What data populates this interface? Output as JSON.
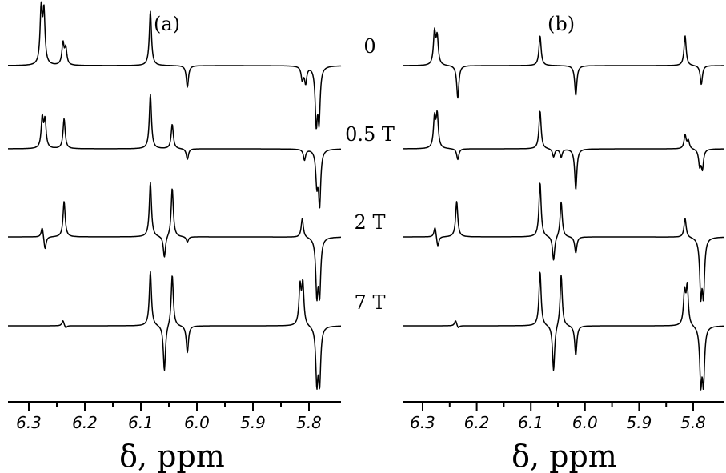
{
  "chart_data": [
    {
      "type": "line",
      "panel_label": "(a)",
      "xlabel": "δ, ppm",
      "x_ticks": [
        "6.3",
        "6.2",
        "6.1",
        "6.0",
        "5.9",
        "5.8"
      ],
      "x_tick_values": [
        6.3,
        6.2,
        6.1,
        6.0,
        5.9,
        5.8
      ],
      "xlim": [
        6.33,
        5.73
      ],
      "x_reversed": true,
      "traces": [
        {
          "field": "0",
          "peaks": [
            {
              "ppm": 6.278,
              "amp": 1.0
            },
            {
              "ppm": 6.273,
              "amp": 0.95
            },
            {
              "ppm": 6.239,
              "amp": 0.4
            },
            {
              "ppm": 6.234,
              "amp": 0.3
            },
            {
              "ppm": 6.083,
              "amp": 1.0
            },
            {
              "ppm": 6.017,
              "amp": -0.4
            },
            {
              "ppm": 5.812,
              "amp": -0.25
            },
            {
              "ppm": 5.806,
              "amp": -0.3
            },
            {
              "ppm": 5.787,
              "amp": -1.0
            },
            {
              "ppm": 5.782,
              "amp": -0.95
            }
          ]
        },
        {
          "field": "0.5 T",
          "peaks": [
            {
              "ppm": 6.276,
              "amp": 0.55
            },
            {
              "ppm": 6.271,
              "amp": 0.5
            },
            {
              "ppm": 6.237,
              "amp": 0.55
            },
            {
              "ppm": 6.083,
              "amp": 1.0
            },
            {
              "ppm": 6.044,
              "amp": 0.45
            },
            {
              "ppm": 6.017,
              "amp": -0.2
            },
            {
              "ppm": 5.808,
              "amp": -0.2
            },
            {
              "ppm": 5.786,
              "amp": -0.6
            },
            {
              "ppm": 5.781,
              "amp": -1.0
            }
          ]
        },
        {
          "field": "2 T",
          "peaks": [
            {
              "ppm": 6.276,
              "amp": 0.2
            },
            {
              "ppm": 6.271,
              "amp": -0.25
            },
            {
              "ppm": 6.237,
              "amp": 0.65
            },
            {
              "ppm": 6.083,
              "amp": 1.0
            },
            {
              "ppm": 6.058,
              "amp": -0.4
            },
            {
              "ppm": 6.044,
              "amp": 0.9
            },
            {
              "ppm": 6.017,
              "amp": -0.1
            },
            {
              "ppm": 5.812,
              "amp": 0.35
            },
            {
              "ppm": 5.786,
              "amp": -1.0
            },
            {
              "ppm": 5.781,
              "amp": -1.0
            }
          ]
        },
        {
          "field": "7 T",
          "peaks": [
            {
              "ppm": 6.239,
              "amp": 0.1
            },
            {
              "ppm": 6.234,
              "amp": -0.05
            },
            {
              "ppm": 6.083,
              "amp": 1.0
            },
            {
              "ppm": 6.058,
              "amp": -0.85
            },
            {
              "ppm": 6.044,
              "amp": 0.95
            },
            {
              "ppm": 6.017,
              "amp": -0.5
            },
            {
              "ppm": 5.816,
              "amp": 0.7
            },
            {
              "ppm": 5.811,
              "amp": 0.75
            },
            {
              "ppm": 5.786,
              "amp": -1.0
            },
            {
              "ppm": 5.781,
              "amp": -1.0
            }
          ]
        }
      ]
    },
    {
      "type": "line",
      "panel_label": "(b)",
      "xlabel": "δ, ppm",
      "x_ticks": [
        "6.3",
        "6.2",
        "6.1",
        "6.0",
        "5.9",
        "5.8"
      ],
      "x_tick_values": [
        6.3,
        6.2,
        6.1,
        6.0,
        5.9,
        5.8
      ],
      "xlim": [
        6.33,
        5.73
      ],
      "x_reversed": true,
      "traces": [
        {
          "field": "0",
          "peaks": [
            {
              "ppm": 6.278,
              "amp": 0.6
            },
            {
              "ppm": 6.273,
              "amp": 0.5
            },
            {
              "ppm": 6.235,
              "amp": -0.6
            },
            {
              "ppm": 6.083,
              "amp": 0.55
            },
            {
              "ppm": 6.017,
              "amp": -0.55
            },
            {
              "ppm": 5.815,
              "amp": 0.55
            },
            {
              "ppm": 5.785,
              "amp": -0.35
            }
          ]
        },
        {
          "field": "0.5 T",
          "peaks": [
            {
              "ppm": 6.278,
              "amp": 0.55
            },
            {
              "ppm": 6.273,
              "amp": 0.6
            },
            {
              "ppm": 6.235,
              "amp": -0.2
            },
            {
              "ppm": 6.083,
              "amp": 0.7
            },
            {
              "ppm": 6.058,
              "amp": -0.15
            },
            {
              "ppm": 6.044,
              "amp": -0.15
            },
            {
              "ppm": 6.017,
              "amp": -0.75
            },
            {
              "ppm": 5.815,
              "amp": 0.25
            },
            {
              "ppm": 5.809,
              "amp": 0.15
            },
            {
              "ppm": 5.788,
              "amp": -0.3
            },
            {
              "ppm": 5.783,
              "amp": -0.35
            }
          ]
        },
        {
          "field": "2 T",
          "peaks": [
            {
              "ppm": 6.277,
              "amp": 0.2
            },
            {
              "ppm": 6.272,
              "amp": -0.2
            },
            {
              "ppm": 6.237,
              "amp": 0.65
            },
            {
              "ppm": 6.083,
              "amp": 1.0
            },
            {
              "ppm": 6.058,
              "amp": -0.45
            },
            {
              "ppm": 6.044,
              "amp": 0.65
            },
            {
              "ppm": 6.017,
              "amp": -0.3
            },
            {
              "ppm": 5.815,
              "amp": 0.35
            },
            {
              "ppm": 5.786,
              "amp": -1.0
            },
            {
              "ppm": 5.781,
              "amp": -1.0
            }
          ]
        },
        {
          "field": "7 T",
          "peaks": [
            {
              "ppm": 6.239,
              "amp": 0.1
            },
            {
              "ppm": 6.234,
              "amp": -0.05
            },
            {
              "ppm": 6.083,
              "amp": 1.0
            },
            {
              "ppm": 6.058,
              "amp": -0.85
            },
            {
              "ppm": 6.044,
              "amp": 0.95
            },
            {
              "ppm": 6.017,
              "amp": -0.55
            },
            {
              "ppm": 5.816,
              "amp": 0.6
            },
            {
              "ppm": 5.811,
              "amp": 0.7
            },
            {
              "ppm": 5.786,
              "amp": -1.0
            },
            {
              "ppm": 5.781,
              "amp": -1.0
            }
          ]
        }
      ]
    }
  ]
}
